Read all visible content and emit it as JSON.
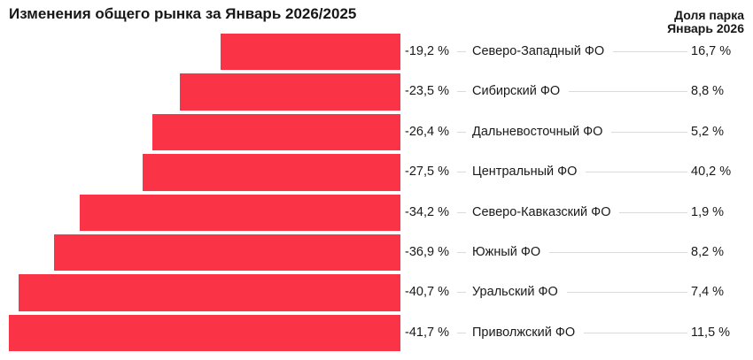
{
  "title": "Изменения общего рынка за Январь 2026/2025",
  "right_header": {
    "line1": "Доля парка",
    "line2": "Январь 2026"
  },
  "colors": {
    "bar": "#FA3347",
    "leader_line": "#dadada",
    "text": "#1a1a1a",
    "background": "#ffffff"
  },
  "chart_data": {
    "type": "bar",
    "orientation": "horizontal",
    "title": "Изменения общего рынка за Январь 2026/2025",
    "categories": [
      "Северо-Западный ФО",
      "Сибирский ФО",
      "Дальневосточный ФО",
      "Центральный ФО",
      "Северо-Кавказский ФО",
      "Южный ФО",
      "Уральский ФО",
      "Приволжский ФО"
    ],
    "series": [
      {
        "name": "Изменение рынка, %",
        "values": [
          -19.2,
          -23.5,
          -26.4,
          -27.5,
          -34.2,
          -36.9,
          -40.7,
          -41.7
        ],
        "labels": [
          "-19,2 %",
          "-23,5 %",
          "-26,4 %",
          "-27,5 %",
          "-34,2 %",
          "-36,9 %",
          "-40,7 %",
          "-41,7 %"
        ]
      },
      {
        "name": "Доля парка Январь 2026, %",
        "values": [
          16.7,
          8.8,
          5.2,
          40.2,
          1.9,
          8.2,
          7.4,
          11.5
        ],
        "labels": [
          "16,7 %",
          "8,8 %",
          "5,2 %",
          "40,2 %",
          "1,9 %",
          "8,2 %",
          "7,4 %",
          "11,5 %"
        ]
      }
    ],
    "xlim": [
      -41.7,
      0
    ],
    "grid": false,
    "legend": "none",
    "bars_aligned": "right-edge-at-zero"
  }
}
